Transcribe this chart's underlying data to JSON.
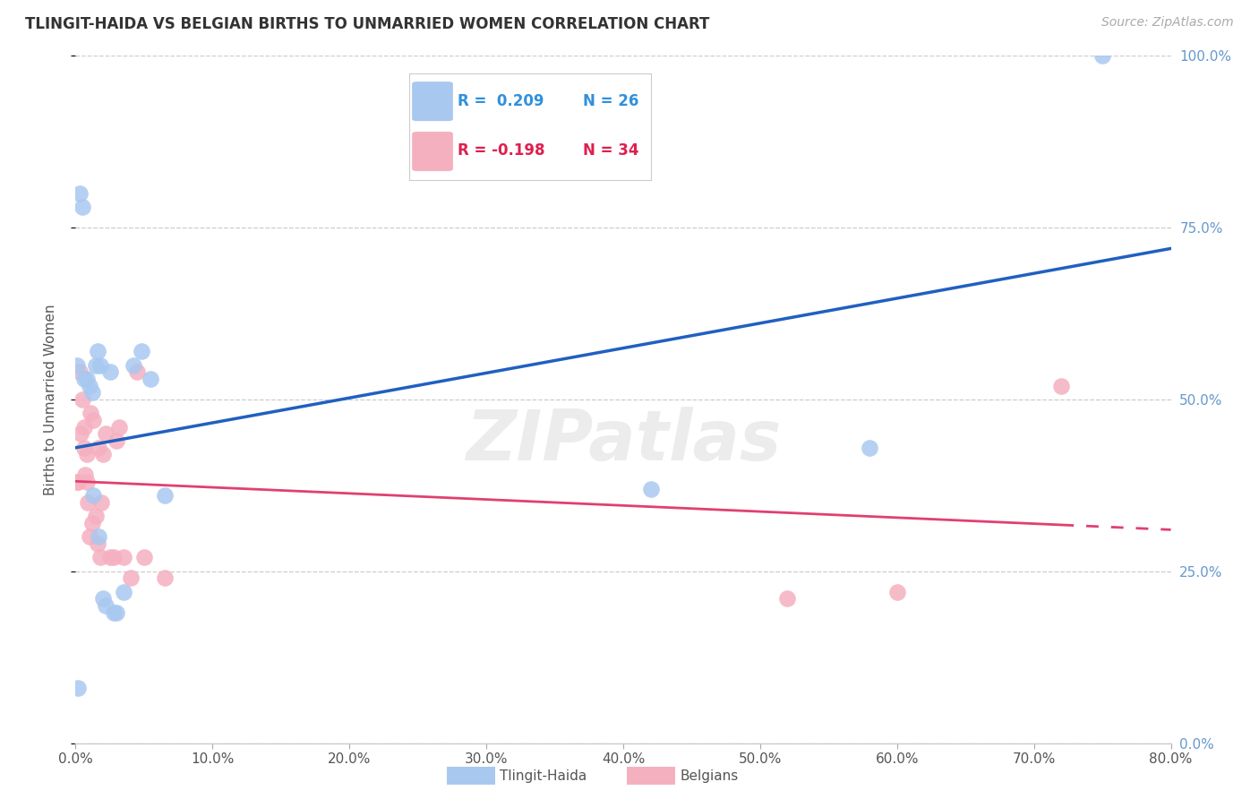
{
  "title": "TLINGIT-HAIDA VS BELGIAN BIRTHS TO UNMARRIED WOMEN CORRELATION CHART",
  "source": "Source: ZipAtlas.com",
  "ylabel": "Births to Unmarried Women",
  "legend_blue_r": "R =  0.209",
  "legend_blue_n": "N = 26",
  "legend_pink_r": "R = -0.198",
  "legend_pink_n": "N = 34",
  "legend_blue_label": "Tlingit-Haida",
  "legend_pink_label": "Belgians",
  "watermark": "ZIPatlas",
  "blue_dot_color": "#A8C8F0",
  "pink_dot_color": "#F5B0C0",
  "blue_line_color": "#2060C0",
  "pink_line_color": "#E04070",
  "blue_text_color": "#3090DD",
  "pink_text_color": "#DD2050",
  "right_axis_color": "#6699CC",
  "xmin": 0.0,
  "xmax": 0.8,
  "ymin": 0.0,
  "ymax": 1.0,
  "tlingit_x": [
    0.001,
    0.002,
    0.003,
    0.005,
    0.006,
    0.008,
    0.01,
    0.012,
    0.013,
    0.015,
    0.016,
    0.017,
    0.018,
    0.02,
    0.022,
    0.025,
    0.028,
    0.03,
    0.035,
    0.042,
    0.048,
    0.055,
    0.065,
    0.42,
    0.58,
    0.75
  ],
  "tlingit_y": [
    0.55,
    0.08,
    0.8,
    0.78,
    0.53,
    0.53,
    0.52,
    0.51,
    0.36,
    0.55,
    0.57,
    0.3,
    0.55,
    0.21,
    0.2,
    0.54,
    0.19,
    0.19,
    0.22,
    0.55,
    0.57,
    0.53,
    0.36,
    0.37,
    0.43,
    1.0
  ],
  "belgian_x": [
    0.001,
    0.002,
    0.003,
    0.004,
    0.005,
    0.006,
    0.006,
    0.007,
    0.008,
    0.008,
    0.009,
    0.01,
    0.011,
    0.012,
    0.013,
    0.015,
    0.016,
    0.017,
    0.018,
    0.019,
    0.02,
    0.022,
    0.025,
    0.028,
    0.03,
    0.032,
    0.035,
    0.04,
    0.045,
    0.05,
    0.065,
    0.52,
    0.6,
    0.72
  ],
  "belgian_y": [
    0.38,
    0.38,
    0.54,
    0.45,
    0.5,
    0.46,
    0.43,
    0.39,
    0.42,
    0.38,
    0.35,
    0.3,
    0.48,
    0.32,
    0.47,
    0.33,
    0.29,
    0.43,
    0.27,
    0.35,
    0.42,
    0.45,
    0.27,
    0.27,
    0.44,
    0.46,
    0.27,
    0.24,
    0.54,
    0.27,
    0.24,
    0.21,
    0.22,
    0.52
  ]
}
